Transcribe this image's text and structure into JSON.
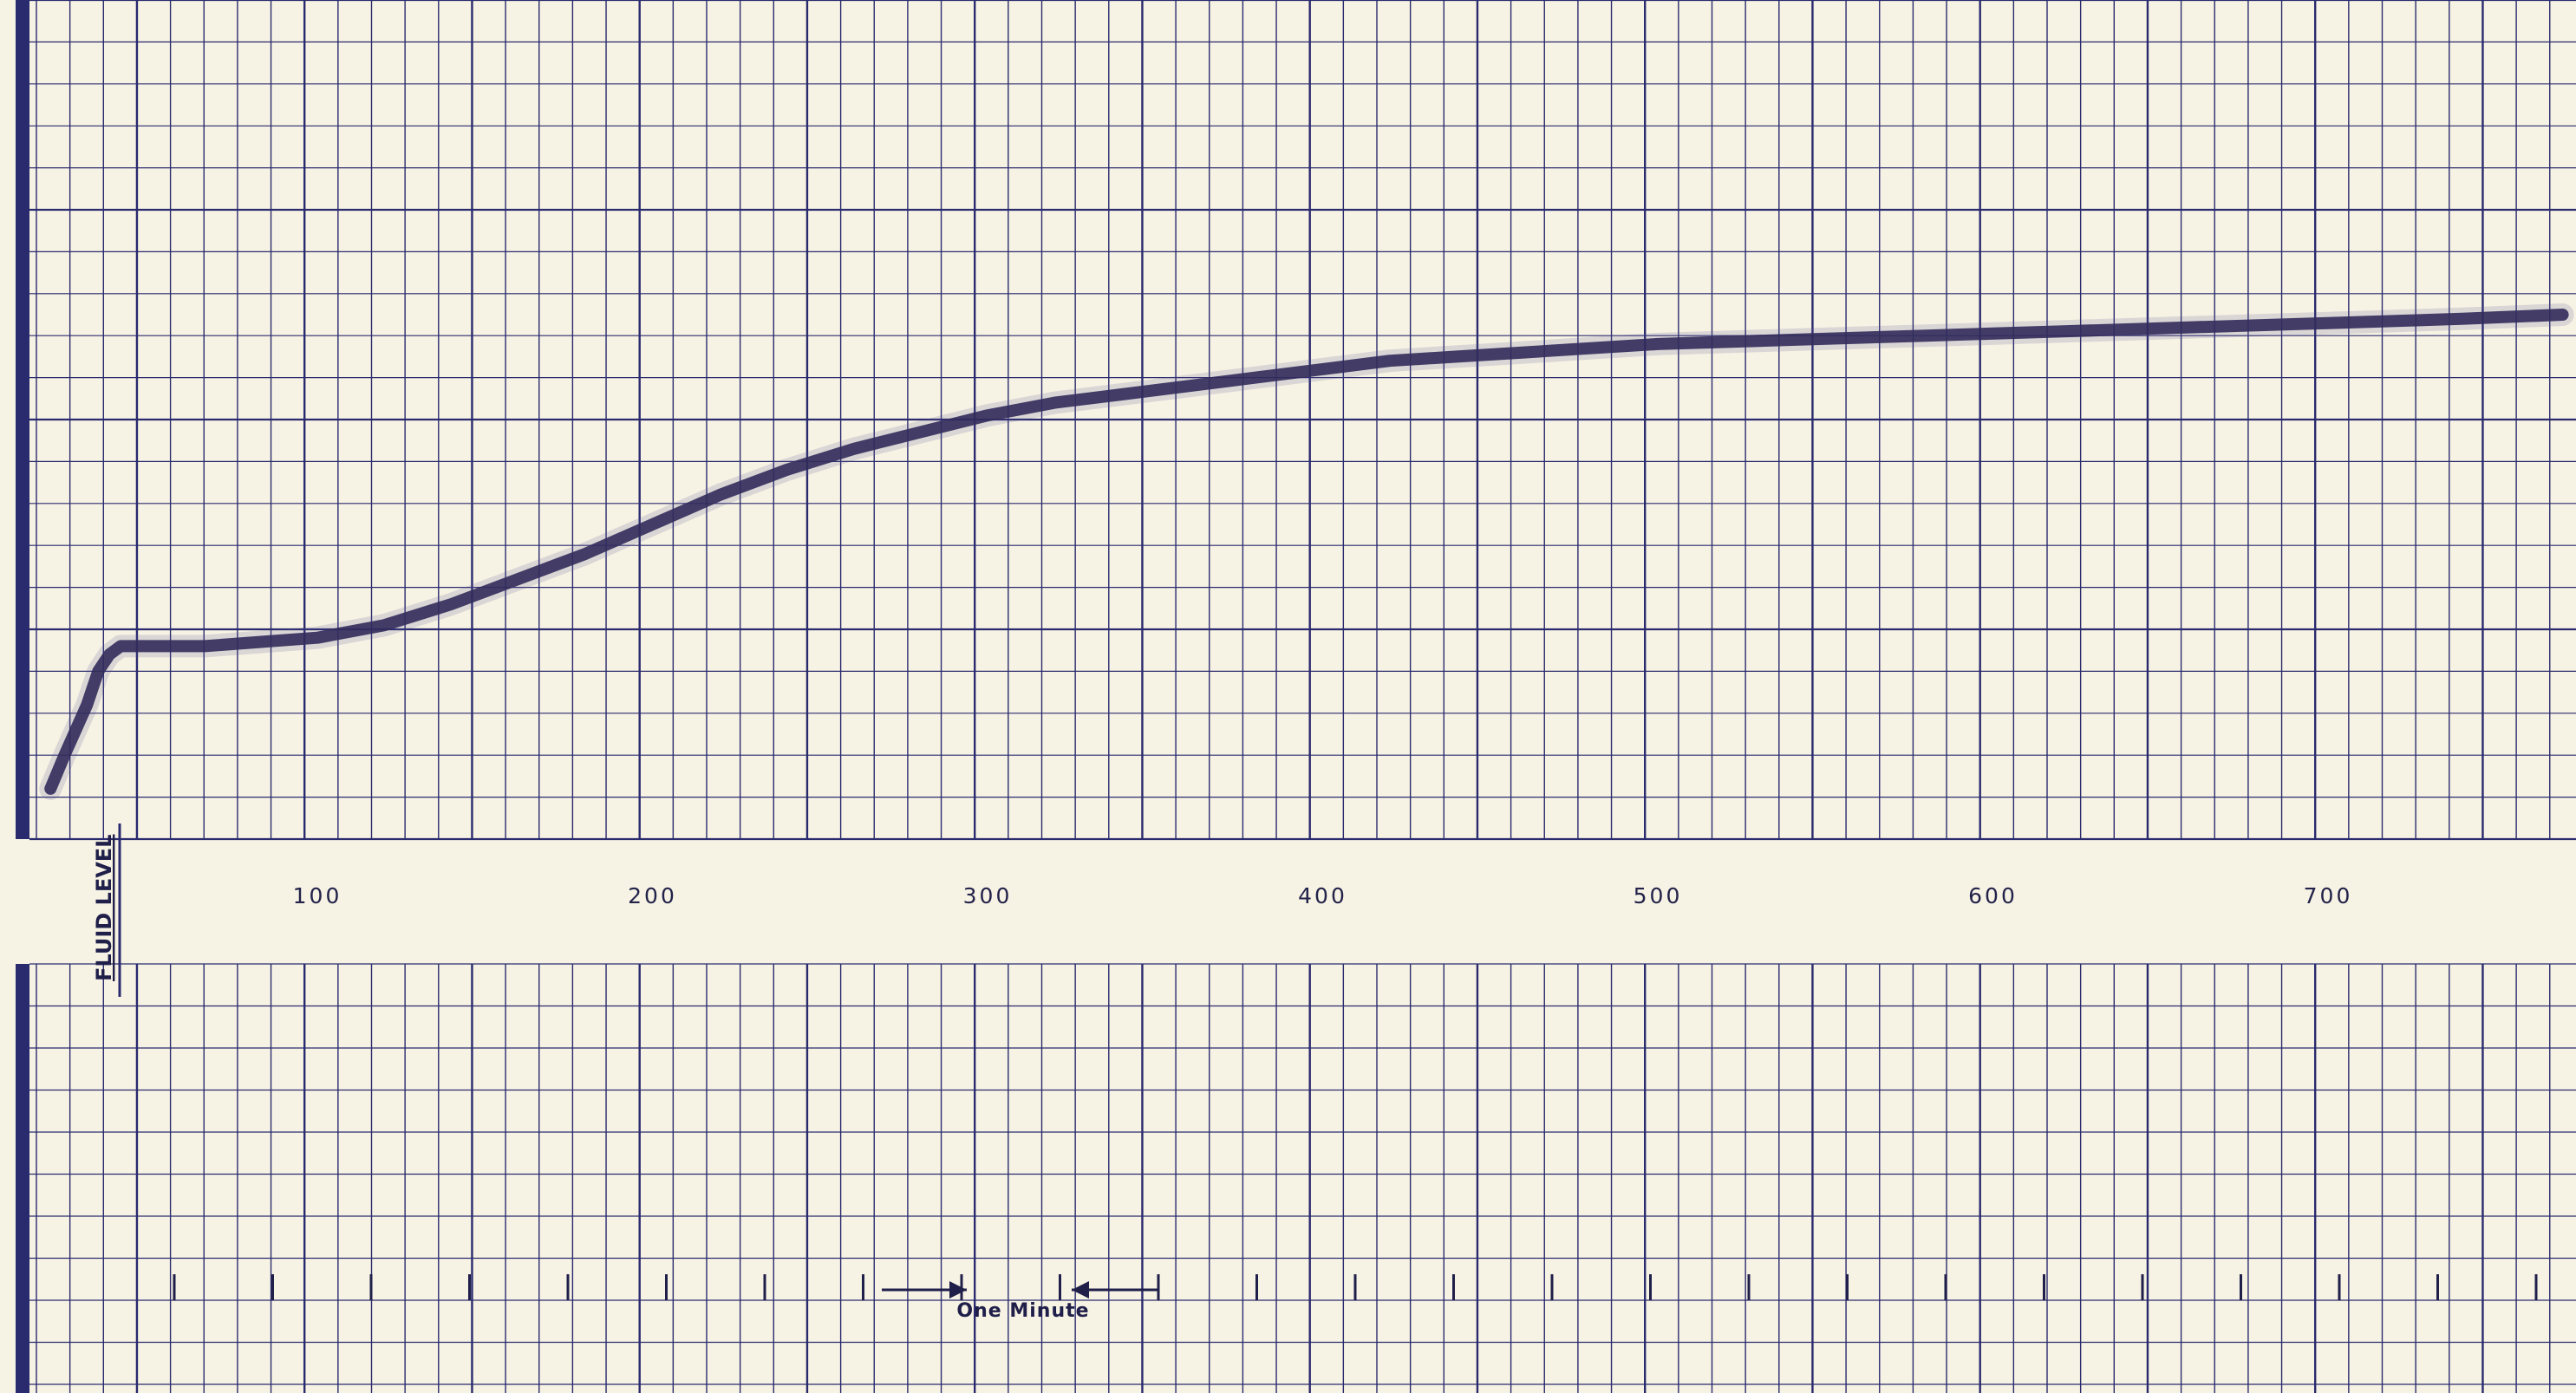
{
  "chart_data": {
    "type": "line",
    "title": "",
    "ylabel": "FLUID LEVEL",
    "xlabel": "",
    "x_ticks": [
      "100",
      "200",
      "300",
      "400",
      "500",
      "600",
      "700"
    ],
    "xlim": [
      0,
      770
    ],
    "ylim": [
      0,
      100
    ],
    "grid": true,
    "series": [
      {
        "x": [
          5,
          10,
          18,
          22,
          26,
          30,
          40,
          60,
          80,
          100,
          120,
          140,
          160,
          180,
          200,
          220,
          240,
          260,
          280,
          300,
          320,
          340,
          360,
          380,
          400,
          420,
          440,
          460,
          480,
          500,
          540,
          580,
          620,
          660,
          700,
          740,
          770
        ],
        "y": [
          6,
          10,
          16,
          20,
          22,
          23,
          23,
          23,
          23.5,
          24,
          25.5,
          28,
          31,
          34,
          37.5,
          41,
          44,
          46.5,
          48.5,
          50.5,
          52,
          53,
          54,
          55,
          56,
          57,
          57.5,
          58,
          58.5,
          59,
          59.5,
          60,
          60.5,
          61,
          61.5,
          62,
          62.5
        ]
      }
    ],
    "annotations": [
      {
        "text": "One Minute"
      }
    ]
  },
  "colors": {
    "paper": "#f7f3e4",
    "grid": "#2a2a6e",
    "trace": "#2a2350"
  }
}
